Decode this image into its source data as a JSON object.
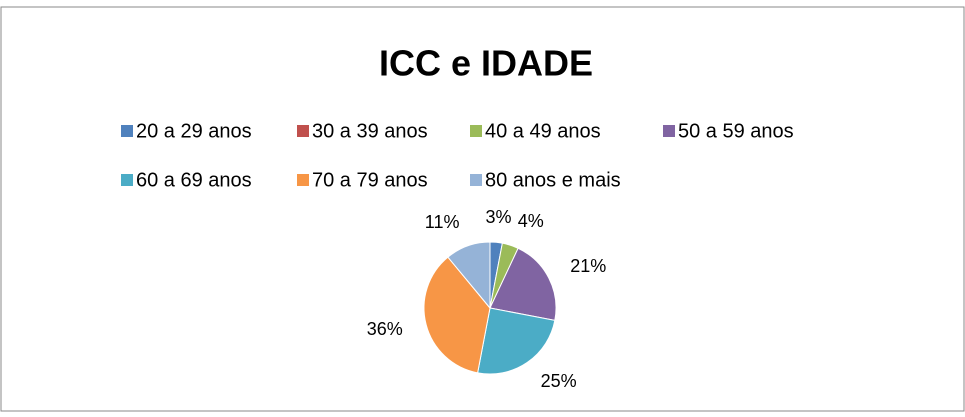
{
  "chart_data": {
    "type": "pie",
    "title": "ICC e IDADE",
    "categories": [
      "20 a 29 anos",
      "30 a 39 anos",
      "40 a 49 anos",
      "50 a 59 anos",
      "60 a 69 anos",
      "70 a 79 anos",
      "80 anos e mais"
    ],
    "values": [
      3,
      0,
      4,
      21,
      25,
      36,
      11
    ],
    "value_labels": [
      "3%",
      null,
      "4%",
      "21%",
      "25%",
      "36%",
      "11%"
    ],
    "colors": [
      "#4f81bd",
      "#c0504d",
      "#9bbb59",
      "#8064a2",
      "#4bacc6",
      "#f79646",
      "#95b3d7"
    ],
    "legend": "top"
  }
}
